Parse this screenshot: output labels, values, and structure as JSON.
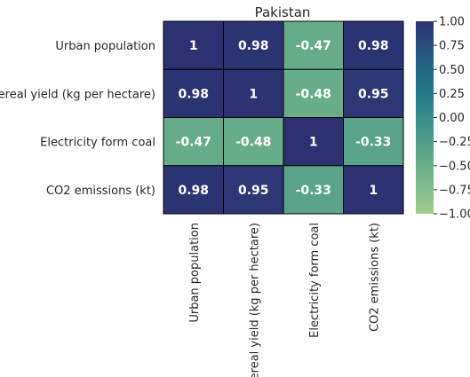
{
  "chart_data": {
    "type": "heatmap",
    "title": "Pakistan",
    "row_labels": [
      "Urban population",
      "Cereal yield (kg per hectare)",
      "Electricity form coal",
      "CO2 emissions (kt)"
    ],
    "col_labels": [
      "Urban population",
      "Cereal yield (kg per hectare)",
      "Electricity form coal",
      "CO2 emissions (kt)"
    ],
    "values": [
      [
        1,
        0.98,
        -0.47,
        0.98
      ],
      [
        0.98,
        1,
        -0.48,
        0.95
      ],
      [
        -0.47,
        -0.48,
        1,
        -0.33
      ],
      [
        0.98,
        0.95,
        -0.33,
        1
      ]
    ],
    "annotations": [
      [
        "1",
        "0.98",
        "-0.47",
        "0.98"
      ],
      [
        "0.98",
        "1",
        "-0.48",
        "0.95"
      ],
      [
        "-0.47",
        "-0.48",
        "1",
        "-0.33"
      ],
      [
        "0.98",
        "0.95",
        "-0.33",
        "1"
      ]
    ],
    "colorscale": "crest",
    "vmin": -1,
    "vmax": 1,
    "colorbar_ticks": [
      "1.00",
      "0.75",
      "0.50",
      "0.25",
      "0.00",
      "−0.25",
      "−0.50",
      "−0.75",
      "−1.00"
    ],
    "cell_border_color": "#000000",
    "colorbar_position": "right"
  }
}
